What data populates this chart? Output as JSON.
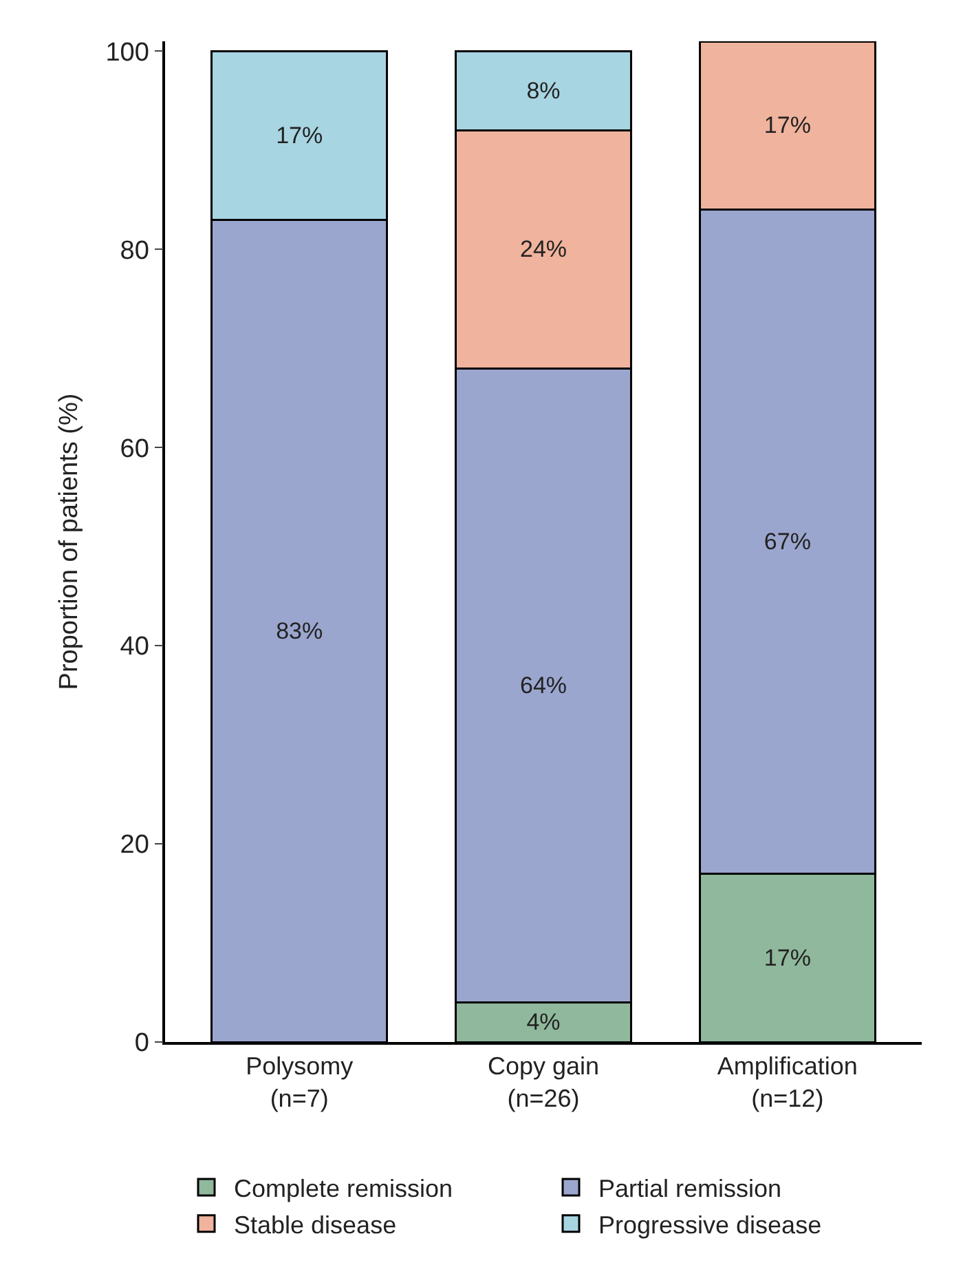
{
  "chart_data": {
    "type": "bar",
    "stacked": true,
    "ylabel": "Proportion of patients (%)",
    "categories": [
      "Polysomy\n(n=7)",
      "Copy gain\n(n=26)",
      "Amplification\n(n=12)"
    ],
    "series": [
      {
        "name": "Complete remission",
        "color": "#8fb89c",
        "values": [
          null,
          4,
          17
        ],
        "value_labels": [
          null,
          "4%",
          "17%"
        ]
      },
      {
        "name": "Partial remission",
        "color": "#9ba6cf",
        "values": [
          83,
          64,
          67
        ],
        "value_labels": [
          "83%",
          "64%",
          "67%"
        ]
      },
      {
        "name": "Stable disease",
        "color": "#f0b39d",
        "values": [
          null,
          24,
          17
        ],
        "value_labels": [
          null,
          "24%",
          "17%"
        ]
      },
      {
        "name": "Progressive disease",
        "color": "#a8d5e2",
        "values": [
          17,
          8,
          null
        ],
        "value_labels": [
          "17%",
          "8%",
          null
        ]
      }
    ],
    "ylim": [
      0,
      101
    ],
    "yticks": [
      0,
      20,
      40,
      60,
      80,
      100
    ],
    "legend": "bottom"
  }
}
